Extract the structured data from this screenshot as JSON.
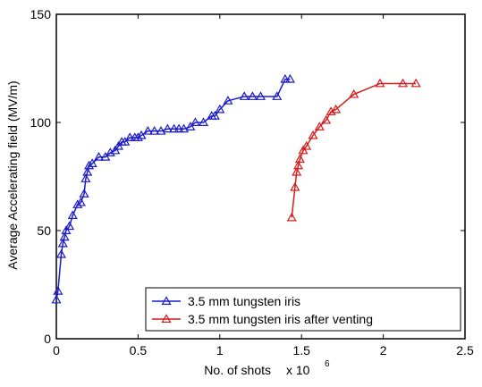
{
  "chart_data": {
    "type": "line",
    "title": "",
    "xlabel": "No. of shots",
    "xlabel_multiplier": "x 10",
    "xlabel_exponent": "6",
    "ylabel": "Average Accelerating field (MV/m)",
    "xlim": [
      0,
      2.5
    ],
    "ylim": [
      0,
      150
    ],
    "x_ticks": [
      0,
      0.5,
      1,
      1.5,
      2,
      2.5
    ],
    "x_tick_labels": [
      "0",
      "0.5",
      "1",
      "1.5",
      "2",
      "2.5"
    ],
    "y_ticks": [
      0,
      50,
      100,
      150
    ],
    "y_tick_labels": [
      "0",
      "50",
      "100",
      "150"
    ],
    "grid": false,
    "legend_position": "bottom-right",
    "marker": "triangle",
    "series": [
      {
        "name": "3.5 mm tungsten iris",
        "color": "#1a1ac8",
        "x": [
          0.0,
          0.01,
          0.03,
          0.04,
          0.05,
          0.06,
          0.08,
          0.1,
          0.13,
          0.15,
          0.17,
          0.18,
          0.19,
          0.2,
          0.22,
          0.26,
          0.3,
          0.33,
          0.36,
          0.38,
          0.4,
          0.42,
          0.45,
          0.48,
          0.5,
          0.52,
          0.56,
          0.6,
          0.64,
          0.68,
          0.72,
          0.75,
          0.78,
          0.82,
          0.85,
          0.9,
          0.95,
          0.97,
          1.0,
          1.05,
          1.15,
          1.2,
          1.25,
          1.35,
          1.4,
          1.43
        ],
        "y": [
          18,
          22,
          39,
          44,
          47,
          50,
          52,
          57,
          62,
          63,
          67,
          74,
          77,
          80,
          81,
          84,
          84,
          86,
          87,
          89,
          91,
          91,
          93,
          93,
          93,
          94,
          96,
          96,
          96,
          97,
          97,
          97,
          97,
          98,
          100,
          100,
          103,
          103,
          106,
          110,
          112,
          112,
          112,
          112,
          120,
          120
        ]
      },
      {
        "name": "3.5 mm tungsten iris after venting",
        "color": "#d41a1a",
        "x": [
          1.44,
          1.46,
          1.47,
          1.48,
          1.49,
          1.51,
          1.53,
          1.57,
          1.61,
          1.65,
          1.68,
          1.71,
          1.82,
          1.98,
          2.12,
          2.2
        ],
        "y": [
          56,
          70,
          77,
          80,
          83,
          87,
          89,
          94,
          98,
          101,
          105,
          106,
          113,
          118,
          118,
          118
        ]
      }
    ]
  }
}
